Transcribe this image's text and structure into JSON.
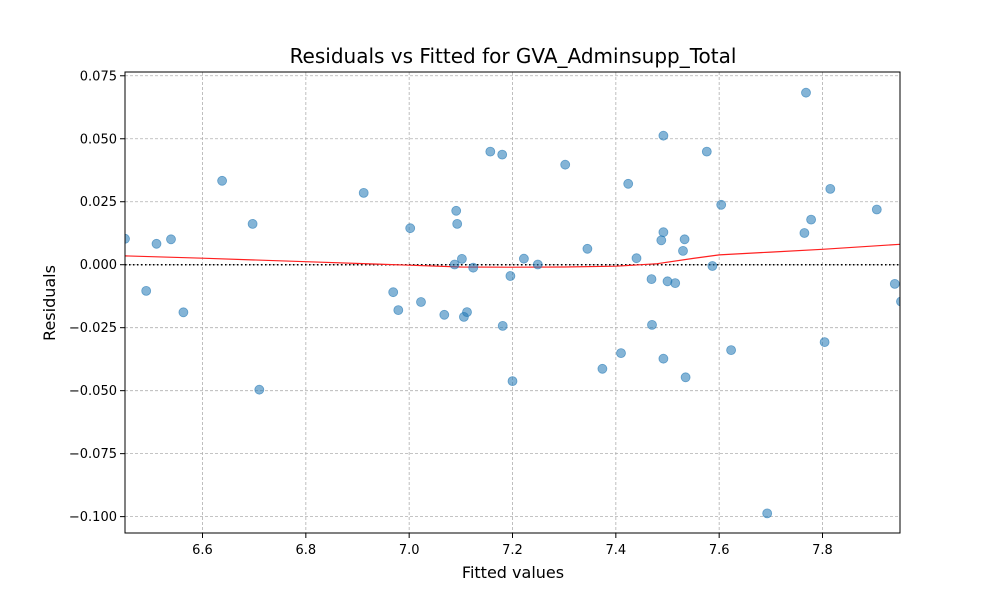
{
  "chart_data": {
    "type": "scatter",
    "title": "Residuals vs Fitted for GVA_Adminsupp_Total",
    "xlabel": "Fitted values",
    "ylabel": "Residuals",
    "xlim": [
      6.45,
      7.95
    ],
    "ylim": [
      -0.1065,
      0.0765
    ],
    "xticks": [
      6.6,
      6.8,
      7.0,
      7.2,
      7.4,
      7.6,
      7.8
    ],
    "xtick_labels": [
      "6.6",
      "6.8",
      "7.0",
      "7.2",
      "7.4",
      "7.6",
      "7.8"
    ],
    "yticks": [
      -0.1,
      -0.075,
      -0.05,
      -0.025,
      0.0,
      0.025,
      0.05,
      0.075
    ],
    "ytick_labels": [
      "−0.100",
      "−0.075",
      "−0.050",
      "−0.025",
      "0.000",
      "0.025",
      "0.050",
      "0.075"
    ],
    "grid": true,
    "reference_line": 0,
    "point_color": "#1f77b4",
    "lowess_color": "#ff2020",
    "points": [
      {
        "x": 6.45,
        "y": 0.0103
      },
      {
        "x": 6.491,
        "y": -0.0104
      },
      {
        "x": 6.511,
        "y": 0.0083
      },
      {
        "x": 6.539,
        "y": 0.0101
      },
      {
        "x": 6.563,
        "y": -0.0189
      },
      {
        "x": 6.638,
        "y": 0.0333
      },
      {
        "x": 6.697,
        "y": 0.0162
      },
      {
        "x": 6.71,
        "y": -0.0496
      },
      {
        "x": 6.912,
        "y": 0.0285
      },
      {
        "x": 6.969,
        "y": -0.0109
      },
      {
        "x": 6.979,
        "y": -0.018
      },
      {
        "x": 7.002,
        "y": 0.0145
      },
      {
        "x": 7.023,
        "y": -0.0148
      },
      {
        "x": 7.068,
        "y": -0.0199
      },
      {
        "x": 7.088,
        "y": 0.0001
      },
      {
        "x": 7.091,
        "y": 0.0214
      },
      {
        "x": 7.093,
        "y": 0.0162
      },
      {
        "x": 7.102,
        "y": 0.0023
      },
      {
        "x": 7.106,
        "y": -0.0207
      },
      {
        "x": 7.112,
        "y": -0.0188
      },
      {
        "x": 7.124,
        "y": -0.0012
      },
      {
        "x": 7.157,
        "y": 0.0449
      },
      {
        "x": 7.18,
        "y": 0.0437
      },
      {
        "x": 7.181,
        "y": -0.0243
      },
      {
        "x": 7.196,
        "y": -0.0045
      },
      {
        "x": 7.2,
        "y": -0.0462
      },
      {
        "x": 7.222,
        "y": 0.0024
      },
      {
        "x": 7.249,
        "y": 0.0001
      },
      {
        "x": 7.302,
        "y": 0.0397
      },
      {
        "x": 7.345,
        "y": 0.0063
      },
      {
        "x": 7.374,
        "y": -0.0413
      },
      {
        "x": 7.41,
        "y": -0.0351
      },
      {
        "x": 7.424,
        "y": 0.0321
      },
      {
        "x": 7.44,
        "y": 0.0026
      },
      {
        "x": 7.469,
        "y": -0.0057
      },
      {
        "x": 7.47,
        "y": -0.0239
      },
      {
        "x": 7.488,
        "y": 0.0097
      },
      {
        "x": 7.492,
        "y": 0.0512
      },
      {
        "x": 7.492,
        "y": 0.0129
      },
      {
        "x": 7.492,
        "y": -0.0373
      },
      {
        "x": 7.5,
        "y": -0.0066
      },
      {
        "x": 7.515,
        "y": -0.0073
      },
      {
        "x": 7.53,
        "y": 0.0055
      },
      {
        "x": 7.533,
        "y": 0.0101
      },
      {
        "x": 7.535,
        "y": -0.0447
      },
      {
        "x": 7.576,
        "y": 0.0449
      },
      {
        "x": 7.587,
        "y": -0.0005
      },
      {
        "x": 7.604,
        "y": 0.0238
      },
      {
        "x": 7.623,
        "y": -0.0339
      },
      {
        "x": 7.693,
        "y": -0.0987
      },
      {
        "x": 7.765,
        "y": 0.0126
      },
      {
        "x": 7.768,
        "y": 0.0683
      },
      {
        "x": 7.778,
        "y": 0.0179
      },
      {
        "x": 7.804,
        "y": -0.0307
      },
      {
        "x": 7.815,
        "y": 0.0301
      },
      {
        "x": 7.905,
        "y": 0.0219
      },
      {
        "x": 7.94,
        "y": -0.0076
      },
      {
        "x": 7.952,
        "y": -0.0146
      }
    ],
    "lowess": [
      {
        "x": 6.45,
        "y": 0.0035
      },
      {
        "x": 6.6,
        "y": 0.0026
      },
      {
        "x": 6.8,
        "y": 0.0012
      },
      {
        "x": 7.0,
        "y": -0.0002
      },
      {
        "x": 7.1,
        "y": -0.0009
      },
      {
        "x": 7.2,
        "y": -0.001
      },
      {
        "x": 7.3,
        "y": -0.0009
      },
      {
        "x": 7.4,
        "y": -0.0006
      },
      {
        "x": 7.48,
        "y": 0.0004
      },
      {
        "x": 7.55,
        "y": 0.0025
      },
      {
        "x": 7.6,
        "y": 0.0039
      },
      {
        "x": 7.7,
        "y": 0.005
      },
      {
        "x": 7.8,
        "y": 0.0061
      },
      {
        "x": 7.95,
        "y": 0.0081
      }
    ]
  }
}
